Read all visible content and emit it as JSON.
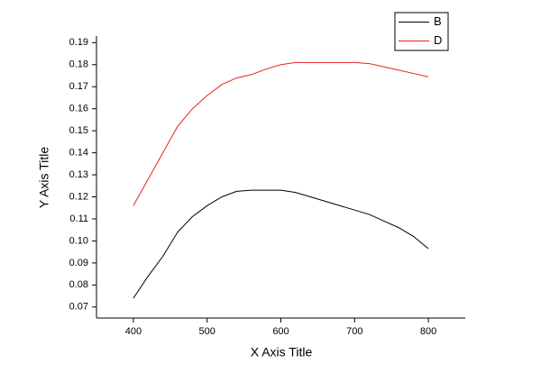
{
  "chart_data": {
    "type": "line",
    "x_label": "X Axis Title",
    "y_label": "Y Axis Title",
    "x": [
      400,
      420,
      440,
      460,
      480,
      500,
      520,
      540,
      560,
      580,
      600,
      620,
      640,
      660,
      680,
      700,
      720,
      740,
      760,
      780,
      800
    ],
    "series": [
      {
        "name": "B",
        "color": "#000000",
        "values": [
          0.074,
          0.084,
          0.093,
          0.104,
          0.111,
          0.116,
          0.12,
          0.1225,
          0.123,
          0.123,
          0.123,
          0.122,
          0.12,
          0.118,
          0.116,
          0.114,
          0.112,
          0.109,
          0.106,
          0.102,
          0.0965
        ]
      },
      {
        "name": "D",
        "color": "#e8201c",
        "values": [
          0.116,
          0.128,
          0.14,
          0.152,
          0.16,
          0.166,
          0.171,
          0.174,
          0.1755,
          0.178,
          0.18,
          0.181,
          0.181,
          0.181,
          0.181,
          0.181,
          0.1805,
          0.179,
          0.1775,
          0.176,
          0.1745
        ]
      }
    ],
    "xlim": [
      350,
      850
    ],
    "xticks": [
      400,
      500,
      600,
      700,
      800
    ],
    "ylim": [
      0.065,
      0.193
    ],
    "yticks": [
      0.07,
      0.08,
      0.09,
      {
        "value": 0.1,
        "label": "0.10"
      },
      0.11,
      0.12,
      0.13,
      0.14,
      0.15,
      0.16,
      0.17,
      0.18,
      0.19
    ],
    "legend": "top-right"
  }
}
